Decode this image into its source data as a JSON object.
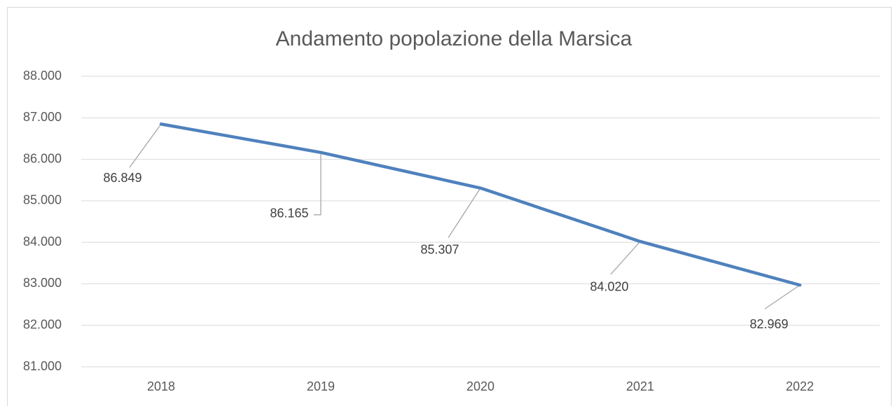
{
  "chart_data": {
    "type": "line",
    "title": "Andamento popolazione della Marsica",
    "categories": [
      "2018",
      "2019",
      "2020",
      "2021",
      "2022"
    ],
    "values": [
      86849,
      86165,
      85307,
      84020,
      82969
    ],
    "value_labels": [
      "86.849",
      "86.165",
      "85.307",
      "84.020",
      "82.969"
    ],
    "color": "#4f81bd",
    "ylim": [
      81000,
      88000
    ],
    "yticks": [
      {
        "value": 81000,
        "label": "81.000"
      },
      {
        "value": 82000,
        "label": "82.000"
      },
      {
        "value": 83000,
        "label": "83.000"
      },
      {
        "value": 84000,
        "label": "84.000"
      },
      {
        "value": 85000,
        "label": "85.000"
      },
      {
        "value": 86000,
        "label": "86.000"
      },
      {
        "value": 87000,
        "label": "87.000"
      },
      {
        "value": 88000,
        "label": "88.000"
      }
    ],
    "grid": true
  }
}
